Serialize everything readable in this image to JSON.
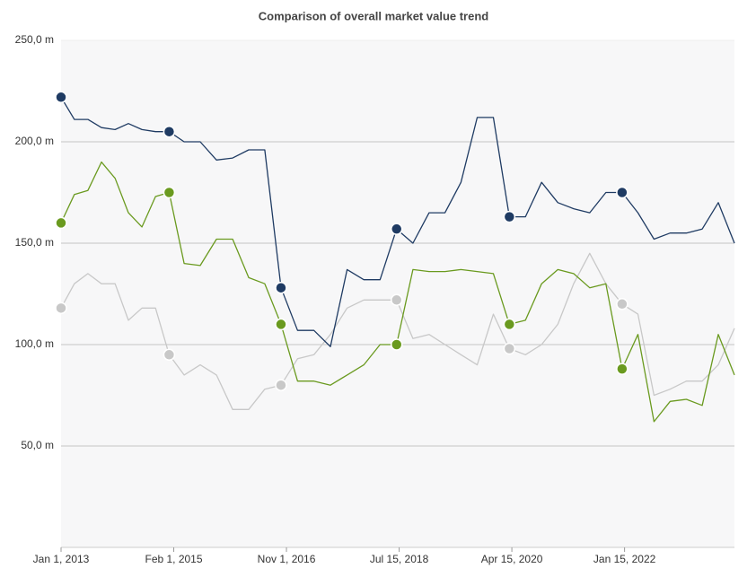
{
  "chart_data": {
    "type": "line",
    "title": "Comparison of overall market value trend",
    "x": [
      "2013-01-01",
      "2013-04-01",
      "2013-07-01",
      "2013-10-01",
      "2014-01-01",
      "2014-04-01",
      "2014-07-01",
      "2014-10-01",
      "2015-01-01",
      "2015-04-01",
      "2015-07-01",
      "2015-10-01",
      "2016-01-01",
      "2016-04-01",
      "2016-07-01",
      "2016-10-01",
      "2017-01-01",
      "2017-04-01",
      "2017-07-01",
      "2017-10-01",
      "2018-01-01",
      "2018-04-01",
      "2018-07-01",
      "2018-10-01",
      "2019-01-01",
      "2019-04-01",
      "2019-07-01",
      "2019-10-01",
      "2020-01-01",
      "2020-04-01",
      "2020-07-01",
      "2020-10-01",
      "2021-01-01",
      "2021-04-01",
      "2021-07-01",
      "2021-10-01",
      "2022-01-01",
      "2022-04-01",
      "2022-07-01",
      "2022-10-01",
      "2023-01-01",
      "2023-04-01",
      "2023-07-01",
      "2023-10-01"
    ],
    "series": [
      {
        "color": "#1f3b63",
        "values": [
          222,
          211,
          211,
          207,
          206,
          209,
          206,
          205,
          205,
          200,
          200,
          191,
          192,
          196,
          196,
          128,
          107,
          107,
          99,
          137,
          132,
          132,
          157,
          150,
          165,
          165,
          180,
          212,
          212,
          163,
          163,
          180,
          170,
          167,
          165,
          175,
          175,
          165,
          152,
          155,
          155,
          157,
          170,
          150
        ]
      },
      {
        "color": "#6a9a1f",
        "values": [
          160,
          174,
          176,
          190,
          182,
          165,
          158,
          173,
          175,
          140,
          139,
          152,
          152,
          133,
          130,
          110,
          82,
          82,
          80,
          85,
          90,
          100,
          100,
          137,
          136,
          136,
          137,
          136,
          135,
          110,
          112,
          130,
          137,
          135,
          128,
          130,
          88,
          105,
          62,
          72,
          73,
          70,
          105,
          85
        ]
      },
      {
        "color": "#c8c8c8",
        "values": [
          118,
          130,
          135,
          130,
          130,
          112,
          118,
          118,
          95,
          85,
          90,
          85,
          68,
          68,
          78,
          80,
          93,
          95,
          105,
          118,
          122,
          122,
          122,
          103,
          105,
          100,
          95,
          90,
          115,
          98,
          95,
          100,
          110,
          130,
          145,
          130,
          120,
          115,
          75,
          78,
          82,
          82,
          90,
          108
        ]
      }
    ],
    "xlim": [
      "2013-01-01",
      "2023-10-01"
    ],
    "xticks": [
      {
        "value": "2013-01-01",
        "label": "Jan 1, 2013"
      },
      {
        "value": "2015-02-01",
        "label": "Feb 1, 2015"
      },
      {
        "value": "2016-11-01",
        "label": "Nov 1, 2016"
      },
      {
        "value": "2018-07-15",
        "label": "Jul 15, 2018"
      },
      {
        "value": "2020-04-15",
        "label": "Apr 15, 2020"
      },
      {
        "value": "2022-01-15",
        "label": "Jan 15, 2022"
      }
    ],
    "ylim": [
      0,
      250
    ],
    "yticks": [
      {
        "value": 50,
        "label": "50,0 m"
      },
      {
        "value": 100,
        "label": "100,0 m"
      },
      {
        "value": 150,
        "label": "150,0 m"
      },
      {
        "value": 200,
        "label": "200,0 m"
      },
      {
        "value": 250,
        "label": "250,0 m"
      }
    ],
    "grid": true
  }
}
